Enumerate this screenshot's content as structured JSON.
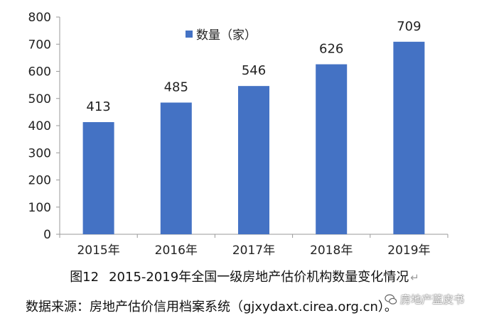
{
  "chart_data": {
    "type": "bar",
    "categories": [
      "2015年",
      "2016年",
      "2017年",
      "2018年",
      "2019年"
    ],
    "series": [
      {
        "name": "数量（家）",
        "values": [
          413,
          485,
          546,
          626,
          709
        ]
      }
    ],
    "data_labels": [
      "413",
      "485",
      "546",
      "626",
      "709"
    ],
    "ylim": [
      0,
      800
    ],
    "yticks": [
      "0",
      "100",
      "200",
      "300",
      "400",
      "500",
      "600",
      "700",
      "800"
    ],
    "grid": false,
    "legend_position": "top-center",
    "bar_color": "#4472C4"
  },
  "caption": {
    "figure_no": "图12",
    "text": "2015-2019年全国一级房地产估价机构数量变化情况",
    "return_mark": "↵"
  },
  "source": "数据来源：房地产估价信用档案系统（gjxydaxt.cirea.org.cn）。",
  "watermark": {
    "text": "房地产蓝皮书",
    "icon": "wechat-icon"
  }
}
